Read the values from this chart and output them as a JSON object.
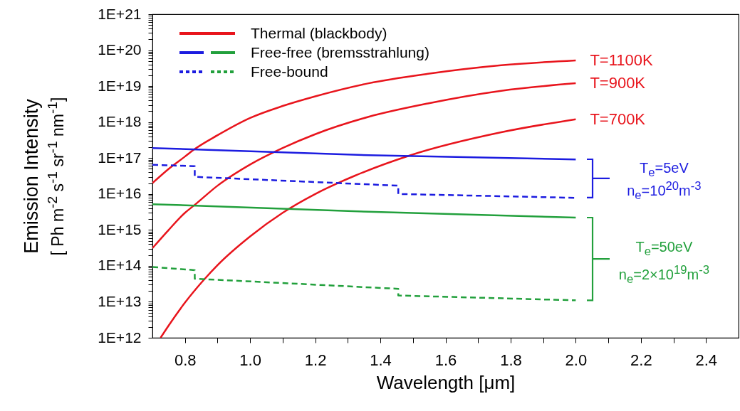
{
  "chart_data": {
    "type": "line",
    "xlabel": "Wavelength [μm]",
    "ylabel": "Emission Intensity\n[ Ph m$^{-2}$ s$^{-1}$ sr$^{-1}$ nm$^{-1}$]",
    "log": "y",
    "legend": "top left",
    "xlim": [
      0.7,
      2.5
    ],
    "xticks": [
      {
        "value": 0.8,
        "label": "0.8"
      },
      {
        "value": 0.9,
        "label": null
      },
      {
        "value": 1.0,
        "label": "1.0"
      },
      {
        "value": 1.1,
        "label": null
      },
      {
        "value": 1.2,
        "label": "1.2"
      },
      {
        "value": 1.3,
        "label": null
      },
      {
        "value": 1.4,
        "label": "1.4"
      },
      {
        "value": 1.5,
        "label": null
      },
      {
        "value": 1.6,
        "label": "1.6"
      },
      {
        "value": 1.7,
        "label": null
      },
      {
        "value": 1.8,
        "label": "1.8"
      },
      {
        "value": 1.9,
        "label": null
      },
      {
        "value": 2.0,
        "label": "2.0"
      },
      {
        "value": 2.1,
        "label": null
      },
      {
        "value": 2.2,
        "label": "2.2"
      },
      {
        "value": 2.3,
        "label": null
      },
      {
        "value": 2.4,
        "label": "2.4"
      }
    ],
    "ylim": [
      1000000000000.0,
      1e+21
    ],
    "yticks": [
      {
        "value": 1000000000000.0,
        "label": "1E+12"
      },
      {
        "value": 2000000000000.0,
        "label": null
      },
      {
        "value": 3000000000000.0,
        "label": null
      },
      {
        "value": 4000000000000.0,
        "label": null
      },
      {
        "value": 5000000000000.0,
        "label": null
      },
      {
        "value": 6000000000000.0,
        "label": null
      },
      {
        "value": 7000000000000.0,
        "label": null
      },
      {
        "value": 8000000000000.0,
        "label": null
      },
      {
        "value": 9000000000000.0,
        "label": null
      },
      {
        "value": 10000000000000.0,
        "label": "1E+13"
      },
      {
        "value": 20000000000000.0,
        "label": null
      },
      {
        "value": 30000000000000.0,
        "label": null
      },
      {
        "value": 40000000000000.0,
        "label": null
      },
      {
        "value": 50000000000000.0,
        "label": null
      },
      {
        "value": 60000000000000.0,
        "label": null
      },
      {
        "value": 70000000000000.0,
        "label": null
      },
      {
        "value": 80000000000000.0,
        "label": null
      },
      {
        "value": 90000000000000.0,
        "label": null
      },
      {
        "value": 100000000000000.0,
        "label": "1E+14"
      },
      {
        "value": 200000000000000.0,
        "label": null
      },
      {
        "value": 300000000000000.0,
        "label": null
      },
      {
        "value": 400000000000000.0,
        "label": null
      },
      {
        "value": 500000000000000.0,
        "label": null
      },
      {
        "value": 600000000000000.0,
        "label": null
      },
      {
        "value": 700000000000000.0,
        "label": null
      },
      {
        "value": 800000000000000.0,
        "label": null
      },
      {
        "value": 900000000000000.0,
        "label": null
      },
      {
        "value": 1000000000000000.0,
        "label": "1E+15"
      },
      {
        "value": 2000000000000000.0,
        "label": null
      },
      {
        "value": 3000000000000000.0,
        "label": null
      },
      {
        "value": 4000000000000000.0,
        "label": null
      },
      {
        "value": 5000000000000000.0,
        "label": null
      },
      {
        "value": 6000000000000000.0,
        "label": null
      },
      {
        "value": 7000000000000000.0,
        "label": null
      },
      {
        "value": 8000000000000000.0,
        "label": null
      },
      {
        "value": 9000000000000000.0,
        "label": null
      },
      {
        "value": 1e+16,
        "label": "1E+16"
      },
      {
        "value": 2e+16,
        "label": null
      },
      {
        "value": 3e+16,
        "label": null
      },
      {
        "value": 4e+16,
        "label": null
      },
      {
        "value": 5e+16,
        "label": null
      },
      {
        "value": 6e+16,
        "label": null
      },
      {
        "value": 7e+16,
        "label": null
      },
      {
        "value": 8e+16,
        "label": null
      },
      {
        "value": 9e+16,
        "label": null
      },
      {
        "value": 1e+17,
        "label": "1E+17"
      },
      {
        "value": 2e+17,
        "label": null
      },
      {
        "value": 3e+17,
        "label": null
      },
      {
        "value": 4e+17,
        "label": null
      },
      {
        "value": 5e+17,
        "label": null
      },
      {
        "value": 6e+17,
        "label": null
      },
      {
        "value": 7e+17,
        "label": null
      },
      {
        "value": 8e+17,
        "label": null
      },
      {
        "value": 9e+17,
        "label": null
      },
      {
        "value": 1e+18,
        "label": "1E+18"
      },
      {
        "value": 2e+18,
        "label": null
      },
      {
        "value": 3e+18,
        "label": null
      },
      {
        "value": 4e+18,
        "label": null
      },
      {
        "value": 5e+18,
        "label": null
      },
      {
        "value": 6e+18,
        "label": null
      },
      {
        "value": 7e+18,
        "label": null
      },
      {
        "value": 8e+18,
        "label": null
      },
      {
        "value": 9e+18,
        "label": null
      },
      {
        "value": 1e+19,
        "label": "1E+19"
      },
      {
        "value": 2e+19,
        "label": null
      },
      {
        "value": 3e+19,
        "label": null
      },
      {
        "value": 4e+19,
        "label": null
      },
      {
        "value": 5e+19,
        "label": null
      },
      {
        "value": 6e+19,
        "label": null
      },
      {
        "value": 7e+19,
        "label": null
      },
      {
        "value": 8e+19,
        "label": null
      },
      {
        "value": 9e+19,
        "label": null
      },
      {
        "value": 1e+20,
        "label": "1E+20"
      },
      {
        "value": 2e+20,
        "label": null
      },
      {
        "value": 3e+20,
        "label": null
      },
      {
        "value": 4e+20,
        "label": null
      },
      {
        "value": 5e+20,
        "label": null
      },
      {
        "value": 6e+20,
        "label": null
      },
      {
        "value": 7e+20,
        "label": null
      },
      {
        "value": 8e+20,
        "label": null
      },
      {
        "value": 9e+20,
        "label": null
      },
      {
        "value": 1e+21,
        "label": "1E+21"
      }
    ],
    "series": [
      {
        "color": "#e8141c",
        "x": [
          0.7,
          0.75,
          0.8,
          0.827,
          0.9,
          1.0,
          1.1,
          1.2,
          1.364,
          1.546,
          1.771,
          2.0
        ],
        "values": [
          2e+16,
          5e+16,
          1.1e+17,
          1.7e+17,
          4.3e+17,
          1.3e+18,
          2.8e+18,
          5.2e+18,
          1.2e+19,
          2.2e+19,
          3.8e+19,
          5.2e+19
        ]
      },
      {
        "color": "#e8141c",
        "x": [
          0.7,
          0.75,
          0.8,
          0.828,
          0.9,
          1.0,
          1.1,
          1.2,
          1.364,
          1.546,
          1.771,
          2.0
        ],
        "values": [
          310000000000000.0,
          1000000000000000.0,
          3000000000000000.0,
          4800000000000000.0,
          1.7e+16,
          6.6e+16,
          1.9e+17,
          4.6e+17,
          1.4e+18,
          3.3e+18,
          7.4e+18,
          1.2e+19
        ]
      },
      {
        "name": "Thermal (blackbody)",
        "color": "#e8141c",
        "x": [
          0.725,
          0.75,
          0.8,
          0.857,
          0.9,
          1.0,
          1.1,
          1.2,
          1.321,
          1.493,
          1.771,
          2.0
        ],
        "values": [
          1000000000000.0,
          2200000000000.0,
          9500000000000.0,
          40000000000000.0,
          105000000000000.0,
          660000000000000.0,
          3000000000000000.0,
          1e+16,
          3.2e+16,
          1.2e+17,
          5.2e+17,
          1.2e+18
        ]
      },
      {
        "color": "#1c1ce0",
        "x": [
          0.7,
          1.364,
          2.0
        ],
        "values": [
          1.9e+17,
          1.2e+17,
          9.1e+16
        ]
      },
      {
        "name": "Free-free (bremsstrahlung)",
        "color": "#22a03c",
        "x": [
          0.7,
          1.364,
          2.0
        ],
        "values": [
          5200000000000000.0,
          3200000000000000.0,
          2200000000000000.0
        ]
      },
      {
        "color": "#1c1ce0",
        "line_style": "dashed",
        "x": [
          0.7,
          0.83,
          0.83,
          1.455,
          1.455,
          2.0
        ],
        "values": [
          6.5e+16,
          5.9e+16,
          3e+16,
          1.7e+16,
          1e+16,
          7800000000000000.0
        ]
      },
      {
        "name": "Free-bound",
        "color": "#22a03c",
        "line_style": "dashed",
        "x": [
          0.7,
          0.83,
          0.83,
          1.455,
          1.455,
          2.0
        ],
        "values": [
          93000000000000.0,
          76000000000000.0,
          44000000000000.0,
          23000000000000.0,
          15000000000000.0,
          11000000000000.0
        ]
      }
    ],
    "annotations": [
      "T=1100K",
      "T=900K",
      "T=700K",
      "T$_{e}$=5eV",
      "n$_{e}$=10$^{20}$m$^{-3}$",
      "T$_{e}$=50eV",
      "n$_{e}$=2×10$^{19}$m$^{-3}$"
    ]
  }
}
